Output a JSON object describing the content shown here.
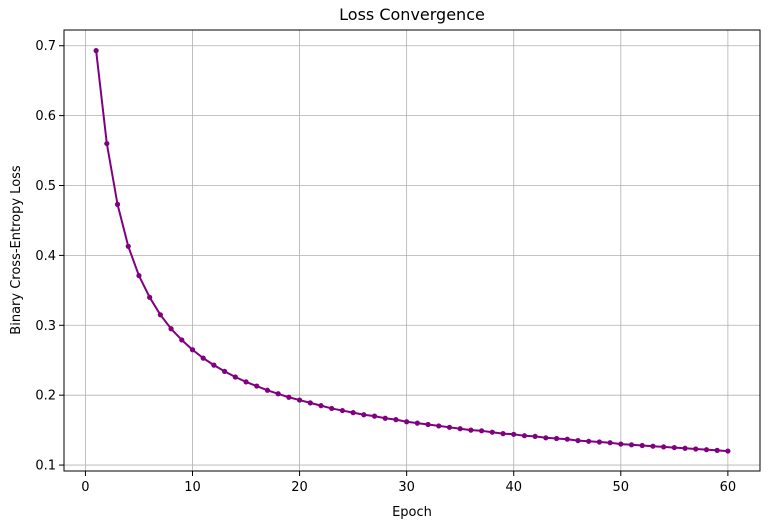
{
  "chart_data": {
    "type": "line",
    "title": "Loss Convergence",
    "xlabel": "Epoch",
    "ylabel": "Binary Cross-Entropy Loss",
    "xlim": [
      -2.0,
      63.0
    ],
    "ylim": [
      0.0915,
      0.7225
    ],
    "xticks": [
      0,
      10,
      20,
      30,
      40,
      50,
      60
    ],
    "yticks": [
      0.1,
      0.2,
      0.3,
      0.4,
      0.5,
      0.6,
      0.7
    ],
    "grid": true,
    "legend": "none",
    "series": [
      {
        "color": "#800080",
        "marker": "circle",
        "x": [
          1,
          2,
          3,
          4,
          5,
          6,
          7,
          8,
          9,
          10,
          11,
          12,
          13,
          14,
          15,
          16,
          17,
          18,
          19,
          20,
          21,
          22,
          23,
          24,
          25,
          26,
          27,
          28,
          29,
          30,
          31,
          32,
          33,
          34,
          35,
          36,
          37,
          38,
          39,
          40,
          41,
          42,
          43,
          44,
          45,
          46,
          47,
          48,
          49,
          50,
          51,
          52,
          53,
          54,
          55,
          56,
          57,
          58,
          59,
          60
        ],
        "y": [
          0.693,
          0.56,
          0.473,
          0.413,
          0.371,
          0.34,
          0.315,
          0.295,
          0.279,
          0.265,
          0.253,
          0.243,
          0.234,
          0.226,
          0.219,
          0.213,
          0.207,
          0.202,
          0.197,
          0.193,
          0.189,
          0.185,
          0.181,
          0.178,
          0.175,
          0.172,
          0.17,
          0.167,
          0.165,
          0.162,
          0.16,
          0.158,
          0.156,
          0.154,
          0.152,
          0.15,
          0.149,
          0.147,
          0.145,
          0.144,
          0.142,
          0.141,
          0.139,
          0.138,
          0.137,
          0.135,
          0.134,
          0.133,
          0.132,
          0.13,
          0.129,
          0.128,
          0.127,
          0.126,
          0.125,
          0.124,
          0.123,
          0.122,
          0.121,
          0.12
        ]
      }
    ]
  }
}
